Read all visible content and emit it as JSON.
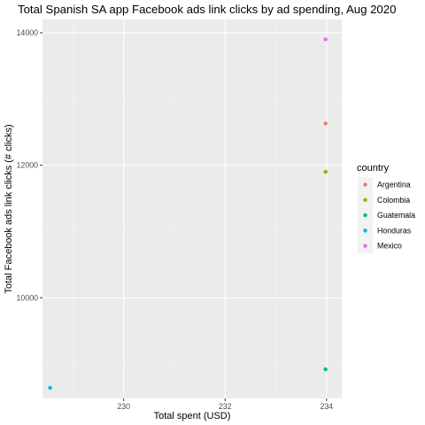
{
  "chart_data": {
    "type": "scatter",
    "title": "Total Spanish SA app Facebook ads link clicks by ad spending, Aug 2020",
    "xlabel": "Total spent (USD)",
    "ylabel": "Total Facebook ads link clicks (# clicks)",
    "xlim": [
      228.4,
      234.3
    ],
    "ylim": [
      8480,
      14200
    ],
    "x_ticks": [
      230,
      232,
      234
    ],
    "x_tick_labels": [
      "230",
      "232",
      "234"
    ],
    "y_ticks": [
      10000,
      12000,
      14000
    ],
    "y_tick_labels": [
      "10000",
      "12000",
      "14000"
    ],
    "grid": true,
    "legend": {
      "title": "country",
      "position": "right"
    },
    "series": [
      {
        "name": "Argentina",
        "color": "#F8766D",
        "points": [
          {
            "x": 233.98,
            "y": 12630
          }
        ]
      },
      {
        "name": "Colombia",
        "color": "#A3A500",
        "points": [
          {
            "x": 233.98,
            "y": 11900
          }
        ]
      },
      {
        "name": "Guatemala",
        "color": "#00BF7D",
        "points": [
          {
            "x": 233.98,
            "y": 8920
          }
        ]
      },
      {
        "name": "Honduras",
        "color": "#00B0F6",
        "points": [
          {
            "x": 228.55,
            "y": 8640
          }
        ]
      },
      {
        "name": "Mexico",
        "color": "#E76BF3",
        "points": [
          {
            "x": 233.98,
            "y": 13900
          }
        ]
      }
    ]
  }
}
